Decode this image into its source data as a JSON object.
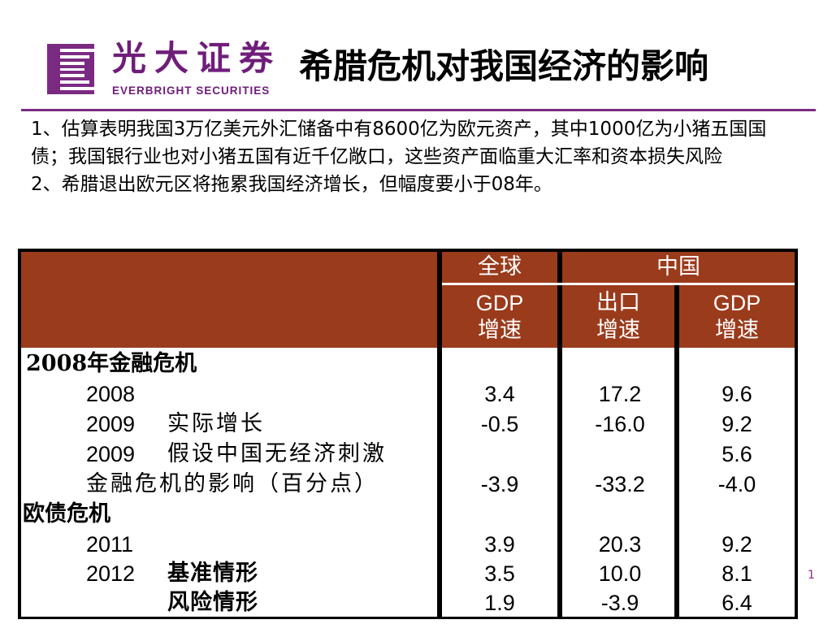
{
  "header": {
    "brand_cn": "光大证券",
    "brand_en": "EVERBRIGHT SECURITIES",
    "title": "希腊危机对我国经济的影响"
  },
  "body": {
    "paragraph1": "1、估算表明我国3万亿美元外汇储备中有8600亿为欧元资产，其中1000亿为小猪五国国债；我国银行业也对小猪五国有近千亿敞口，这些资产面临重大汇率和资本损失风险",
    "paragraph2": "2、希腊退出欧元区将拖累我国经济增长，但幅度要小于08年。"
  },
  "table": {
    "group_global": "全球",
    "group_china": "中国",
    "col_global_gdp": [
      "GDP",
      "增速"
    ],
    "col_export": [
      "出口",
      "增速"
    ],
    "col_china_gdp": [
      "GDP",
      "增速"
    ],
    "rows": [
      {
        "section": "2008年金融危机"
      },
      {
        "year": "2008",
        "desc": "",
        "global_gdp": "3.4",
        "export": "17.2",
        "china_gdp": "9.6"
      },
      {
        "year": "2009",
        "desc": "实际增长",
        "global_gdp": "-0.5",
        "export": "-16.0",
        "china_gdp": "9.2"
      },
      {
        "year": "2009",
        "desc": "假设中国无经济刺激",
        "global_gdp": "",
        "export": "",
        "china_gdp": "5.6"
      },
      {
        "year": "",
        "desc": "金融危机的影响（百分点）",
        "global_gdp": "-3.9",
        "export": "-33.2",
        "china_gdp": "-4.0"
      },
      {
        "section": "欧债危机"
      },
      {
        "year": "2011",
        "desc": "",
        "global_gdp": "3.9",
        "export": "20.3",
        "china_gdp": "9.2"
      },
      {
        "year": "2012",
        "desc": "基准情形",
        "global_gdp": "3.5",
        "export": "10.0",
        "china_gdp": "8.1"
      },
      {
        "year": "",
        "desc": "风险情形",
        "global_gdp": "1.9",
        "export": "-3.9",
        "china_gdp": "6.4"
      }
    ]
  },
  "colors": {
    "brand": "#6f1d7a",
    "table_header": "#9a3b1c"
  },
  "side_mark": "1"
}
